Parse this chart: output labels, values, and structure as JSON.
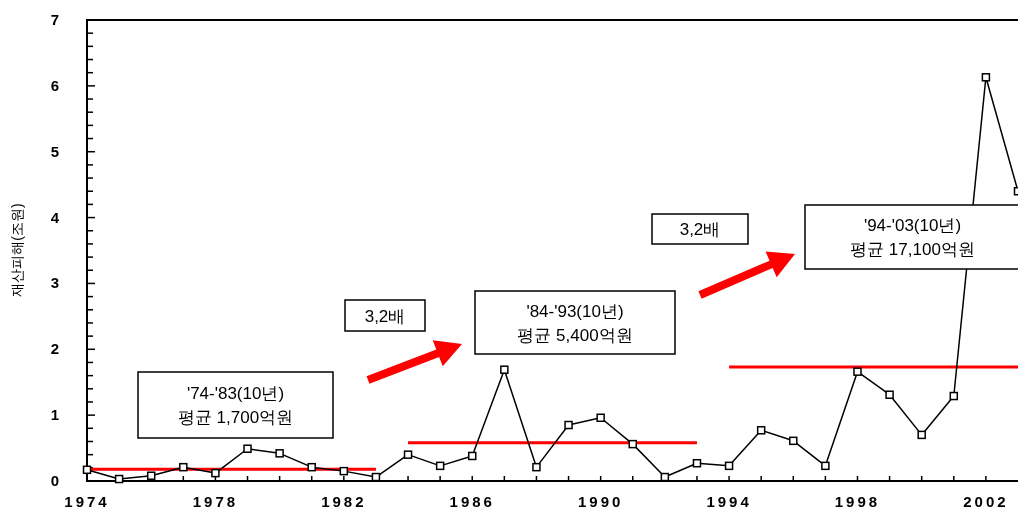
{
  "chart_data": {
    "type": "line",
    "ylabel": "재산피해(조원)",
    "x": [
      1974,
      1975,
      1976,
      1977,
      1978,
      1979,
      1980,
      1981,
      1982,
      1983,
      1984,
      1985,
      1986,
      1987,
      1988,
      1989,
      1990,
      1991,
      1992,
      1993,
      1994,
      1995,
      1996,
      1997,
      1998,
      1999,
      2000,
      2001,
      2002,
      2003
    ],
    "series": [
      {
        "color": "#000000",
        "marker": "square",
        "values": [
          0.17,
          0.03,
          0.08,
          0.21,
          0.12,
          0.49,
          0.42,
          0.21,
          0.15,
          0.06,
          0.4,
          0.23,
          0.38,
          1.69,
          0.21,
          0.85,
          0.96,
          0.56,
          0.06,
          0.27,
          0.23,
          0.77,
          0.61,
          0.23,
          1.66,
          1.31,
          0.7,
          1.29,
          6.13,
          4.4
        ]
      },
      {
        "color": "#ff0000",
        "marker": "none",
        "x": [
          1974,
          1983
        ],
        "values": [
          0.18,
          0.18
        ]
      },
      {
        "color": "#ff0000",
        "marker": "none",
        "x": [
          1984,
          1993
        ],
        "values": [
          0.58,
          0.58
        ]
      },
      {
        "color": "#ff0000",
        "marker": "none",
        "x": [
          1994,
          2003
        ],
        "values": [
          1.73,
          1.73
        ]
      }
    ],
    "xlim": [
      1974,
      2003
    ],
    "xticks": [
      1974,
      {
        "value": 1975,
        "label": null
      },
      {
        "value": 1976,
        "label": null
      },
      {
        "value": 1977,
        "label": null
      },
      1978,
      {
        "value": 1979,
        "label": null
      },
      {
        "value": 1980,
        "label": null
      },
      {
        "value": 1981,
        "label": null
      },
      1982,
      {
        "value": 1983,
        "label": null
      },
      {
        "value": 1984,
        "label": null
      },
      {
        "value": 1985,
        "label": null
      },
      1986,
      {
        "value": 1987,
        "label": null
      },
      {
        "value": 1988,
        "label": null
      },
      {
        "value": 1989,
        "label": null
      },
      1990,
      {
        "value": 1991,
        "label": null
      },
      {
        "value": 1992,
        "label": null
      },
      {
        "value": 1993,
        "label": null
      },
      1994,
      {
        "value": 1995,
        "label": null
      },
      {
        "value": 1996,
        "label": null
      },
      {
        "value": 1997,
        "label": null
      },
      1998,
      {
        "value": 1999,
        "label": null
      },
      {
        "value": 2000,
        "label": null
      },
      {
        "value": 2001,
        "label": null
      },
      2002
    ],
    "ylim": [
      0,
      7
    ],
    "yticks": [
      0,
      {
        "value": 0.2,
        "label": null
      },
      {
        "value": 0.4,
        "label": null
      },
      {
        "value": 0.6,
        "label": null
      },
      {
        "value": 0.8,
        "label": null
      },
      1,
      {
        "value": 1.2,
        "label": null
      },
      {
        "value": 1.4,
        "label": null
      },
      {
        "value": 1.6,
        "label": null
      },
      {
        "value": 1.8,
        "label": null
      },
      2,
      {
        "value": 2.2,
        "label": null
      },
      {
        "value": 2.4,
        "label": null
      },
      {
        "value": 2.6,
        "label": null
      },
      {
        "value": 2.8,
        "label": null
      },
      3,
      {
        "value": 3.2,
        "label": null
      },
      {
        "value": 3.4,
        "label": null
      },
      {
        "value": 3.6,
        "label": null
      },
      {
        "value": 3.8,
        "label": null
      },
      4,
      {
        "value": 4.2,
        "label": null
      },
      {
        "value": 4.4,
        "label": null
      },
      {
        "value": 4.6,
        "label": null
      },
      {
        "value": 4.8,
        "label": null
      },
      5,
      {
        "value": 5.2,
        "label": null
      },
      {
        "value": 5.4,
        "label": null
      },
      {
        "value": 5.6,
        "label": null
      },
      {
        "value": 5.8,
        "label": null
      },
      6,
      {
        "value": 6.2,
        "label": null
      },
      {
        "value": 6.4,
        "label": null
      },
      {
        "value": 6.6,
        "label": null
      },
      {
        "value": 6.8,
        "label": null
      },
      7
    ],
    "grid": false,
    "line_style": "solid",
    "annotations": [
      "'74-'83(10년)\n평균 1,700억원",
      "3,2배",
      "'84-'93(10년)\n평균 5,400억원",
      "3,2배",
      "'94-'03(10년)\n평균 17,100억원"
    ]
  }
}
